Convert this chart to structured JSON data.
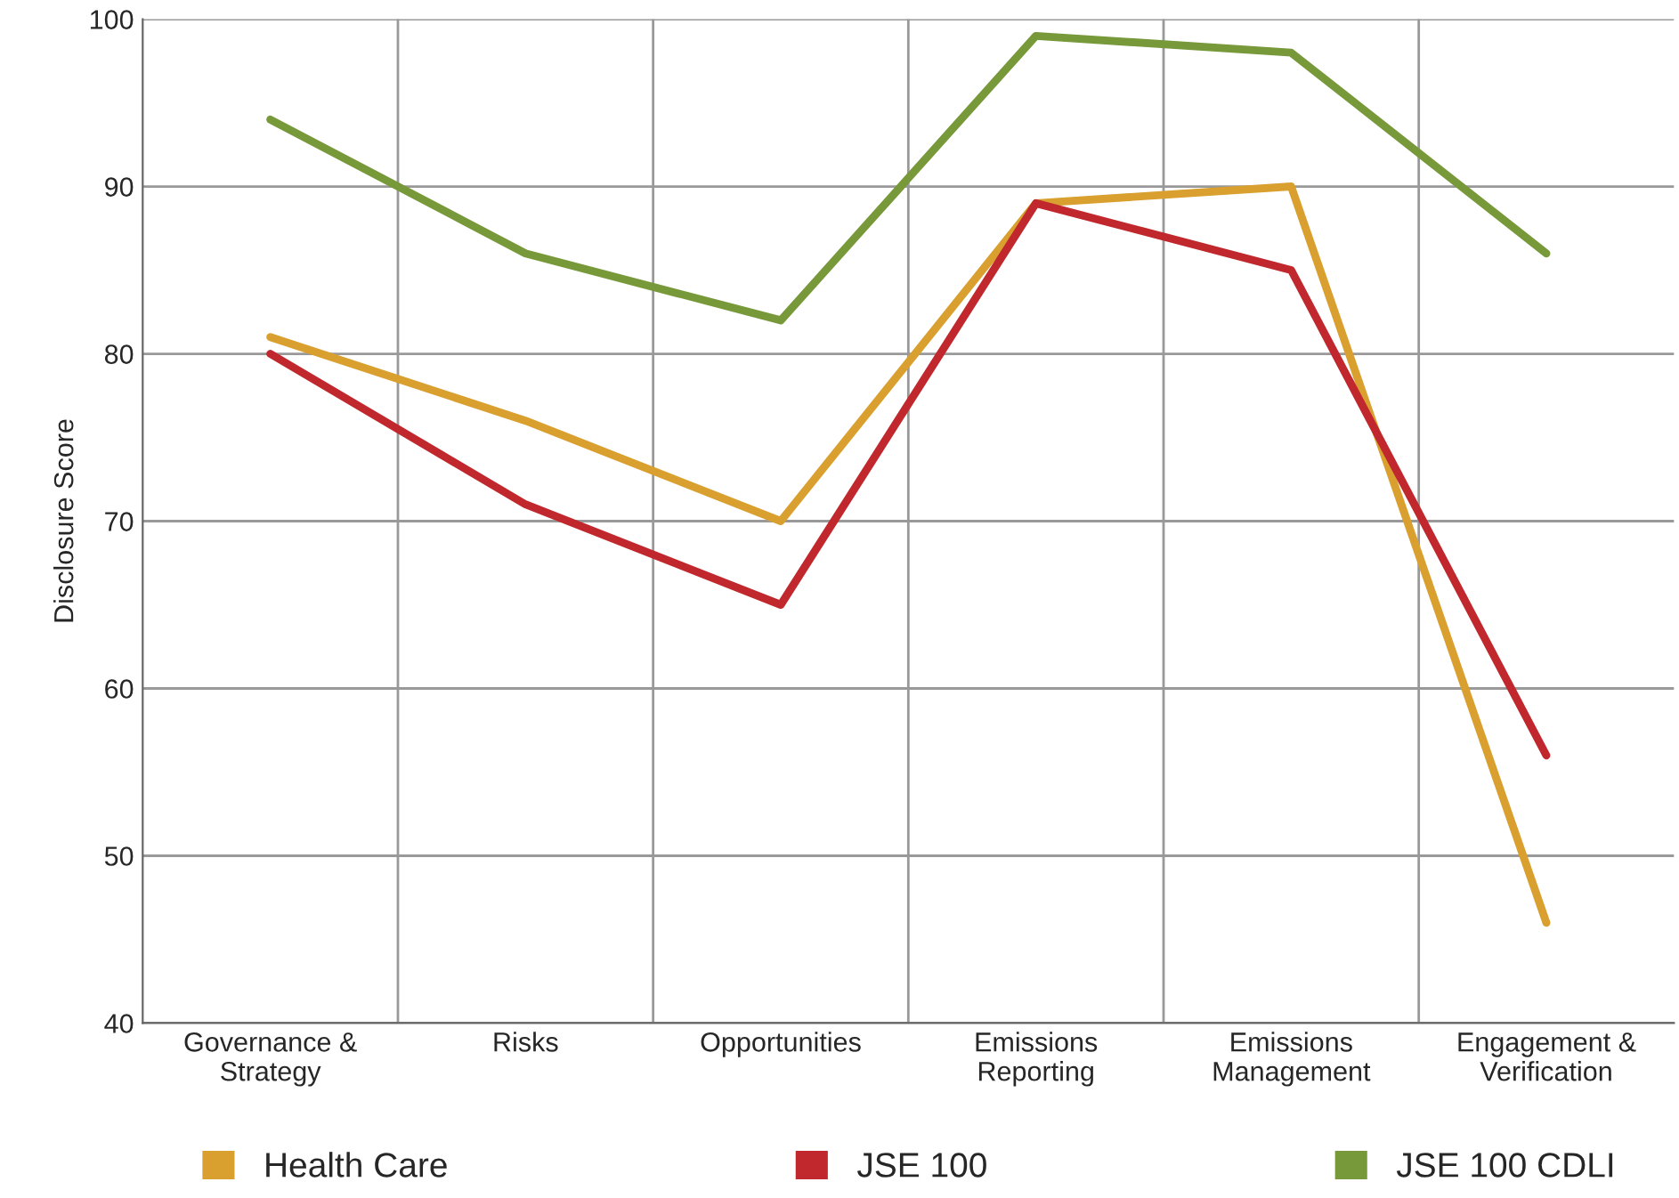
{
  "chart_data": {
    "type": "line",
    "ylabel": "Disclosure Score",
    "categories": [
      "Governance &\nStrategy",
      "Risks",
      "Opportunities",
      "Emissions\nReporting",
      "Emissions\nManagement",
      "Engagement &\nVerification"
    ],
    "series": [
      {
        "name": "Health Care",
        "color": "#d9a030",
        "values": [
          81,
          76,
          70,
          89,
          90,
          46
        ]
      },
      {
        "name": "JSE 100",
        "color": "#c0282d",
        "values": [
          80,
          71,
          65,
          89,
          85,
          56
        ]
      },
      {
        "name": "JSE 100 CDLI",
        "color": "#77993a",
        "values": [
          94,
          86,
          82,
          99,
          98,
          86
        ]
      }
    ],
    "ylim": [
      40,
      100
    ],
    "yticks": [
      40,
      50,
      60,
      70,
      80,
      90,
      100
    ],
    "grid": true,
    "legend": "bottom",
    "marker": "none",
    "line_style": "solid"
  }
}
